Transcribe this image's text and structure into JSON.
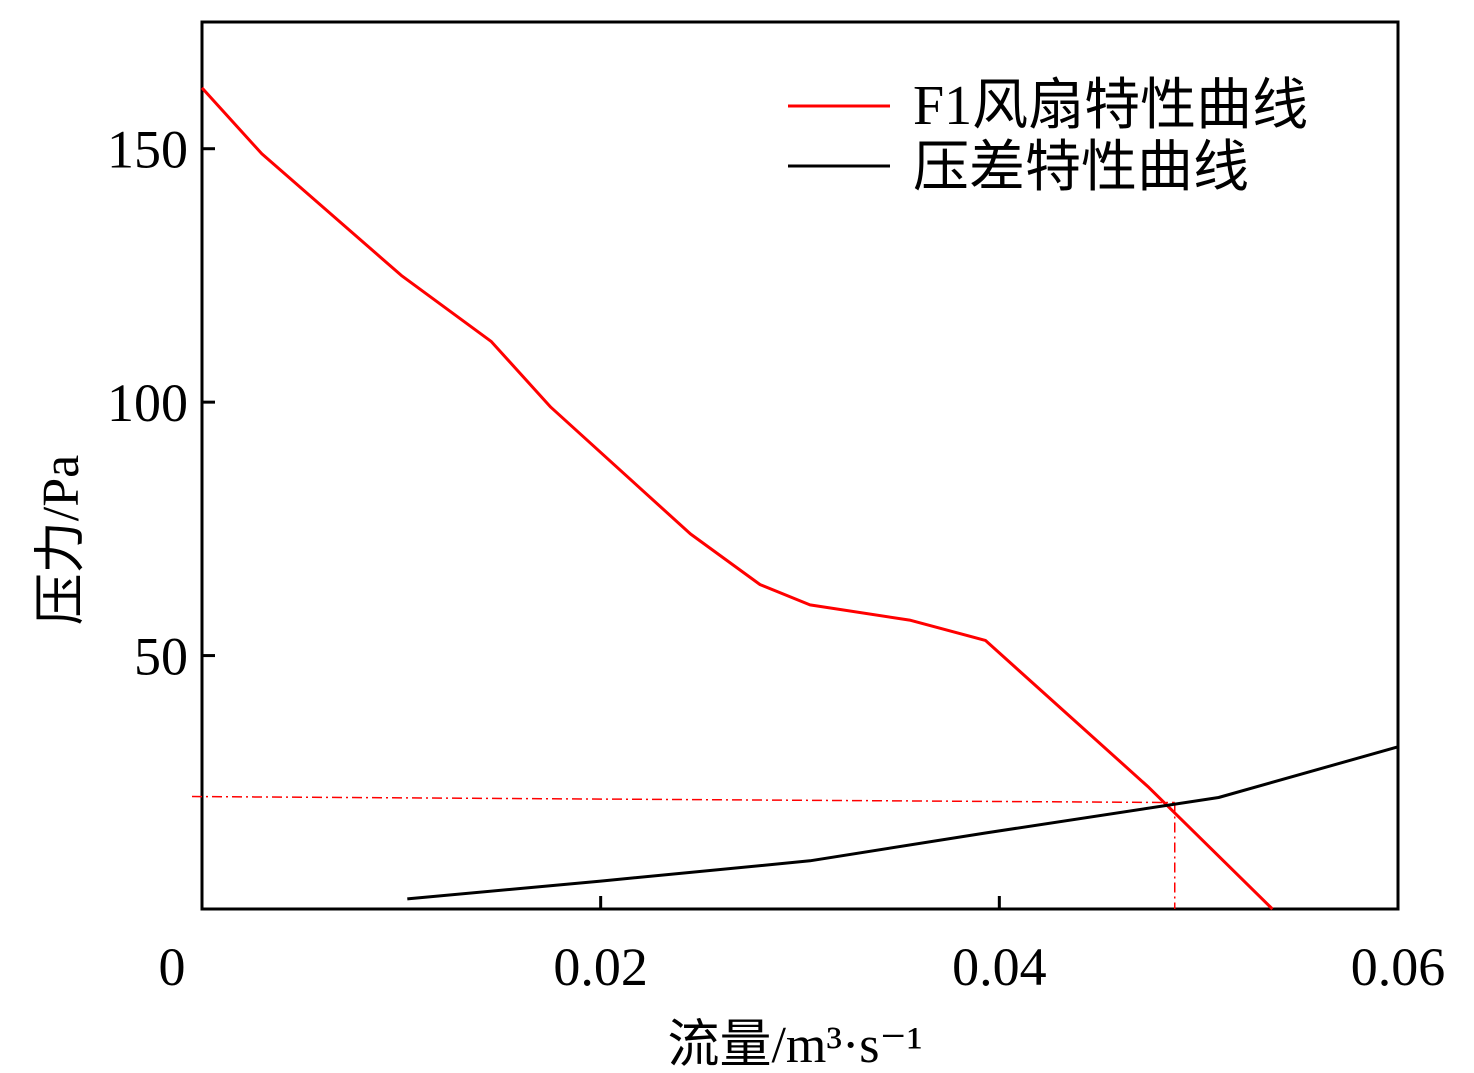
{
  "chart_data": {
    "type": "line",
    "xlabel": "流量/m³·s⁻¹",
    "ylabel": "压力/Pa",
    "xlim": [
      0,
      0.06
    ],
    "ylim": [
      0,
      175
    ],
    "xticks": [
      "0",
      "0.02",
      "0.04",
      "0.06"
    ],
    "yticks": [
      "50",
      "100",
      "150"
    ],
    "legend_position": "top-right",
    "grid": false,
    "series": [
      {
        "name": "F1风扇特性曲线",
        "color": "#ff0000",
        "x": [
          0,
          0.003,
          0.01,
          0.0145,
          0.0175,
          0.0245,
          0.028,
          0.0305,
          0.0355,
          0.0393,
          0.0475,
          0.0537
        ],
        "y": [
          162,
          149,
          125,
          112,
          99,
          74,
          64,
          60,
          57,
          53,
          24,
          0
        ]
      },
      {
        "name": "压差特性曲线",
        "color": "#000000",
        "x": [
          0.0103,
          0.02,
          0.0305,
          0.0393,
          0.051,
          0.06
        ],
        "y": [
          2,
          5.5,
          9.5,
          15,
          22,
          32
        ]
      }
    ],
    "reference_lines": {
      "color": "#ff0000",
      "intersection_x": 0.0488,
      "intersection_y": 21
    }
  }
}
